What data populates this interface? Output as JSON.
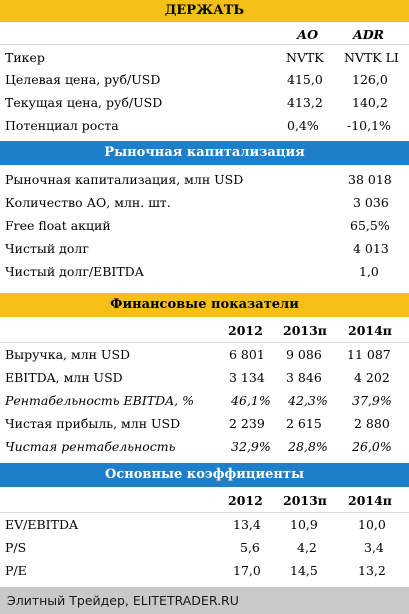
{
  "hold": {
    "title": "ДЕРЖАТЬ",
    "col_ao": "АО",
    "col_adr": "ADR",
    "rows": [
      {
        "label": "Тикер",
        "ao": "NVTK",
        "adr": "NVTK LI"
      },
      {
        "label": "Целевая цена, руб/USD",
        "ao": "415,0",
        "adr": "126,0"
      },
      {
        "label": "Текущая цена, руб/USD",
        "ao": "413,2",
        "adr": "140,2"
      },
      {
        "label": "Потенциал роста",
        "ao": "0,4%",
        "adr": "-10,1%"
      }
    ]
  },
  "market_cap": {
    "title": "Рыночная капитализация",
    "rows": [
      {
        "label": "Рыночная капитализация, млн USD",
        "value": "38 018"
      },
      {
        "label": "Количество АО, млн. шт.",
        "value": "3 036"
      },
      {
        "label": "Free float акций",
        "value": "65,5%"
      },
      {
        "label": "Чистый долг",
        "value": "4 013"
      },
      {
        "label": "Чистый долг/EBITDA",
        "value": "1,0"
      }
    ]
  },
  "financials": {
    "title": "Финансовые показатели",
    "years": [
      "2012",
      "2013п",
      "2014п"
    ],
    "rows": [
      {
        "label": "Выручка, млн USD",
        "v": [
          "6 801",
          "9 086",
          "11 087"
        ]
      },
      {
        "label": "EBITDA, млн USD",
        "v": [
          "3 134",
          "3 846",
          "4 202"
        ]
      },
      {
        "label": "Рентабельность EBITDA, %",
        "v": [
          "46,1%",
          "42,3%",
          "37,9%"
        ]
      },
      {
        "label": "Чистая прибыль, млн USD",
        "v": [
          "2 239",
          "2 615",
          "2 880"
        ]
      },
      {
        "label": "Чистая рентабельность",
        "v": [
          "32,9%",
          "28,8%",
          "26,0%"
        ]
      }
    ]
  },
  "ratios": {
    "title": "Основные коэффициенты",
    "years": [
      "2012",
      "2013п",
      "2014п"
    ],
    "rows": [
      {
        "label": "EV/EBITDA",
        "v": [
          "13,4",
          "10,9",
          "10,0"
        ]
      },
      {
        "label": "P/S",
        "v": [
          "5,6",
          "4,2",
          "3,4"
        ]
      },
      {
        "label": "P/E",
        "v": [
          "17,0",
          "14,5",
          "13,2"
        ]
      }
    ]
  },
  "footer": "Элитный Трейдер, ELITETRADER.RU",
  "colors": {
    "yellow": "#f5bf15",
    "blue": "#1d7ec9",
    "footer_bg": "#c9c9c9"
  }
}
